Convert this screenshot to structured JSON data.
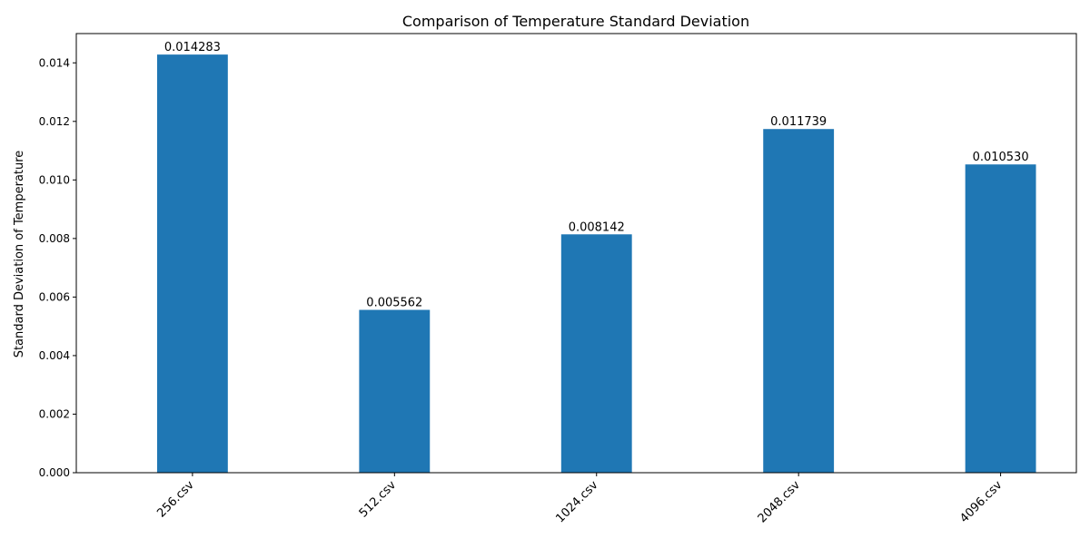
{
  "chart_data": {
    "type": "bar",
    "title": "Comparison of Temperature Standard Deviation",
    "xlabel": "",
    "ylabel": "Standard Deviation of Temperature",
    "categories": [
      "256.csv",
      "512.csv",
      "1024.csv",
      "2048.csv",
      "4096.csv"
    ],
    "values": [
      0.014283,
      0.005562,
      0.008142,
      0.011739,
      0.01053
    ],
    "value_labels": [
      "0.014283",
      "0.005562",
      "0.008142",
      "0.011739",
      "0.010530"
    ],
    "ylim": [
      0,
      0.015
    ],
    "yticks": [
      0,
      0.002,
      0.004,
      0.006,
      0.008,
      0.01,
      0.012,
      0.014
    ],
    "ytick_labels": [
      "0.000",
      "0.002",
      "0.004",
      "0.006",
      "0.008",
      "0.010",
      "0.012",
      "0.014"
    ],
    "grid": false,
    "bar_color": "#1f77b4",
    "xtick_rotation": 45
  }
}
